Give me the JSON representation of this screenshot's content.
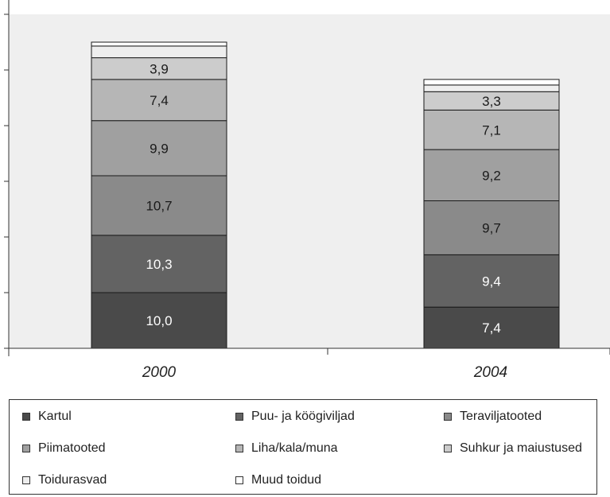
{
  "chart_data": {
    "type": "bar",
    "stacked": true,
    "categories": [
      "2000",
      "2004"
    ],
    "series": [
      {
        "name": "Kartul",
        "values": [
          10.0,
          7.4
        ],
        "labels": [
          "10,0",
          "7,4"
        ],
        "color": "#4a4a4a",
        "label_color": "#ffffff"
      },
      {
        "name": "Puu- ja köögiviljad",
        "values": [
          10.3,
          9.4
        ],
        "labels": [
          "10,3",
          "9,4"
        ],
        "color": "#636363",
        "label_color": "#ffffff"
      },
      {
        "name": "Teraviljatooted",
        "values": [
          10.7,
          9.7
        ],
        "labels": [
          "10,7",
          "9,7"
        ],
        "color": "#8a8a8a",
        "label_color": "#1a1a1a"
      },
      {
        "name": "Piimatooted",
        "values": [
          9.9,
          9.2
        ],
        "labels": [
          "9,9",
          "9,2"
        ],
        "color": "#a0a0a0",
        "label_color": "#1a1a1a"
      },
      {
        "name": "Liha/kala/muna",
        "values": [
          7.4,
          7.1
        ],
        "labels": [
          "7,4",
          "7,1"
        ],
        "color": "#b6b6b6",
        "label_color": "#1a1a1a"
      },
      {
        "name": "Suhkur ja maiustused",
        "values": [
          3.9,
          3.3
        ],
        "labels": [
          "3,9",
          "3,3"
        ],
        "color": "#cccccc",
        "label_color": "#1a1a1a"
      },
      {
        "name": "Toidurasvad",
        "values": [
          2.1,
          1.2
        ],
        "labels": [
          "",
          ""
        ],
        "color": "#eeeeee",
        "label_color": "#1a1a1a"
      },
      {
        "name": "Muud toidud",
        "values": [
          0.7,
          1.0
        ],
        "labels": [
          "",
          ""
        ],
        "color": "#ffffff",
        "label_color": "#1a1a1a"
      }
    ],
    "ylim": [
      0,
      60
    ],
    "title": "",
    "xlabel": "",
    "ylabel": "",
    "grid": false,
    "legend_position": "bottom",
    "colors": {
      "plot_background": "#efefef",
      "outline": "#1a1a1a"
    }
  }
}
